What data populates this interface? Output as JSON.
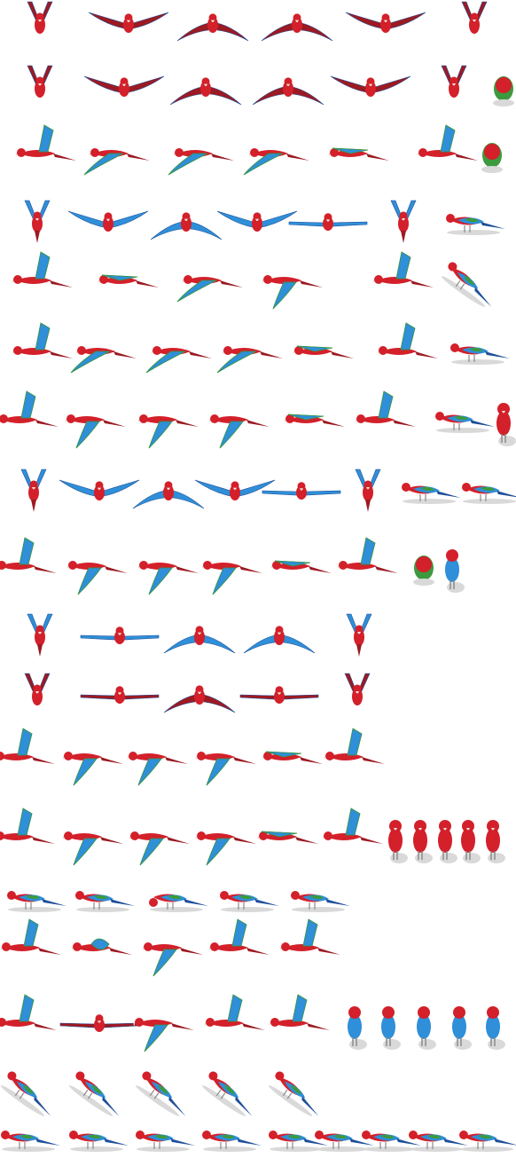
{
  "sheet": {
    "background": "#ffffff",
    "palette": {
      "red": "#d3202a",
      "red_dark": "#9c1a22",
      "blue": "#2f8fd8",
      "blue_dark": "#1e4f9a",
      "green": "#3c9a3e",
      "yellow": "#e8c23a",
      "beak": "#e8e1d6",
      "leg": "#8a8a8a",
      "shadow": "#d9d9d9"
    },
    "rows": [
      {
        "name": "flap-front-a",
        "frames": [
          "up",
          "spread",
          "down",
          "down",
          "spread",
          "up"
        ]
      },
      {
        "name": "flap-front-b",
        "frames": [
          "up",
          "spread",
          "down",
          "down",
          "spread",
          "up",
          "head-top"
        ]
      },
      {
        "name": "flap-side-a",
        "frames": [
          "side-up",
          "side-spread",
          "side-spread",
          "side-spread",
          "side-glide",
          "side-up",
          "head-side"
        ]
      },
      {
        "name": "flap-back-a",
        "frames": [
          "back-up",
          "back-spread",
          "back-down",
          "back-spread",
          "back-glide",
          "back-up",
          "perch-side"
        ]
      },
      {
        "name": "flap-side-b",
        "frames": [
          "side-up",
          "side-glide",
          "side-spread",
          "side-down",
          "side-up",
          "perch-lean"
        ]
      },
      {
        "name": "flap-side-c",
        "frames": [
          "side-up",
          "side-spread",
          "side-spread",
          "side-spread",
          "side-glide",
          "side-up",
          "lie-side"
        ]
      },
      {
        "name": "flap-side-d",
        "frames": [
          "side-up",
          "dive",
          "dive",
          "dive",
          "side-glide",
          "side-up",
          "lean-down",
          "stand-front"
        ]
      },
      {
        "name": "flap-back-b",
        "frames": [
          "back-up",
          "back-spread",
          "back-down",
          "back-spread",
          "back-glide",
          "back-up",
          "lean-side",
          "lie-side"
        ]
      },
      {
        "name": "flap-side-e",
        "frames": [
          "side-up",
          "side-down",
          "side-down",
          "side-down",
          "side-glide",
          "side-up",
          "head-front",
          "stand-back"
        ]
      },
      {
        "name": "flap-back-c",
        "frames": [
          "back-up",
          "back-glide",
          "back-down",
          "back-down",
          "back-up"
        ]
      },
      {
        "name": "flap-front-c",
        "frames": [
          "up",
          "glide",
          "down",
          "glide",
          "up"
        ]
      },
      {
        "name": "flap-side-f",
        "frames": [
          "side-up",
          "dive",
          "dive",
          "dive",
          "side-glide",
          "side-up"
        ]
      },
      {
        "name": "flap-side-g",
        "frames": [
          "side-up",
          "side-down",
          "side-down",
          "side-down",
          "side-glide",
          "side-up",
          "stand-front",
          "stand-front",
          "stand-front",
          "stand-front",
          "stand-front"
        ]
      },
      {
        "name": "walk-side",
        "frames": [
          "walk",
          "walk",
          "peck",
          "walk",
          "walk"
        ]
      },
      {
        "name": "takeoff-side",
        "frames": [
          "side-up",
          "spin",
          "side-down",
          "side-up",
          "side-up"
        ]
      },
      {
        "name": "land-side",
        "frames": [
          "side-up",
          "glide",
          "side-down",
          "side-up",
          "side-up",
          "stand-back",
          "stand-back",
          "stand-back",
          "stand-back",
          "stand-back"
        ]
      },
      {
        "name": "perch-side",
        "frames": [
          "perch-lean",
          "perch-lean",
          "perch-lean",
          "perch-lean",
          "perch-lean"
        ]
      },
      {
        "name": "hop-side",
        "frames": [
          "walk",
          "walk",
          "walk",
          "walk",
          "walk",
          "walk",
          "walk",
          "walk",
          "walk"
        ]
      }
    ]
  }
}
